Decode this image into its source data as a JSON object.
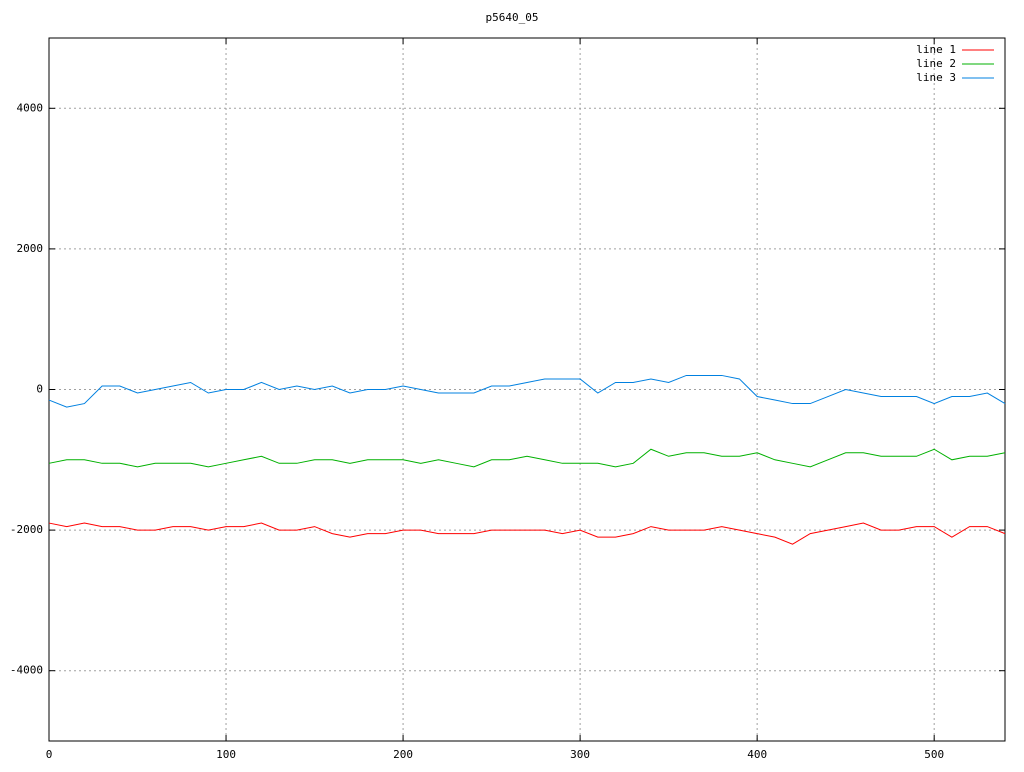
{
  "chart_data": {
    "type": "line",
    "title": "p5640_05",
    "x": [
      0,
      10,
      20,
      30,
      40,
      50,
      60,
      70,
      80,
      90,
      100,
      110,
      120,
      130,
      140,
      150,
      160,
      170,
      180,
      190,
      200,
      210,
      220,
      230,
      240,
      250,
      260,
      270,
      280,
      290,
      300,
      310,
      320,
      330,
      340,
      350,
      360,
      370,
      380,
      390,
      400,
      410,
      420,
      430,
      440,
      450,
      460,
      470,
      480,
      490,
      500,
      510,
      520,
      530,
      540
    ],
    "series": [
      {
        "name": "line 1",
        "color": "#ff0000",
        "values": [
          -1900,
          -1950,
          -1900,
          -1950,
          -1950,
          -2000,
          -2000,
          -1950,
          -1950,
          -2000,
          -1950,
          -1950,
          -1900,
          -2000,
          -2000,
          -1950,
          -2050,
          -2100,
          -2050,
          -2050,
          -2000,
          -2000,
          -2050,
          -2050,
          -2050,
          -2000,
          -2000,
          -2000,
          -2000,
          -2050,
          -2000,
          -2100,
          -2100,
          -2050,
          -1950,
          -2000,
          -2000,
          -2000,
          -1950,
          -2000,
          -2050,
          -2100,
          -2200,
          -2050,
          -2000,
          -1950,
          -1900,
          -2000,
          -2000,
          -1950,
          -1950,
          -2100,
          -1950,
          -1950,
          -2050
        ]
      },
      {
        "name": "line 2",
        "color": "#00b000",
        "values": [
          -1050,
          -1000,
          -1000,
          -1050,
          -1050,
          -1100,
          -1050,
          -1050,
          -1050,
          -1100,
          -1050,
          -1000,
          -950,
          -1050,
          -1050,
          -1000,
          -1000,
          -1050,
          -1000,
          -1000,
          -1000,
          -1050,
          -1000,
          -1050,
          -1100,
          -1000,
          -1000,
          -950,
          -1000,
          -1050,
          -1050,
          -1050,
          -1100,
          -1050,
          -850,
          -950,
          -900,
          -900,
          -950,
          -950,
          -900,
          -1000,
          -1050,
          -1100,
          -1000,
          -900,
          -900,
          -950,
          -950,
          -950,
          -850,
          -1000,
          -950,
          -950,
          -900
        ]
      },
      {
        "name": "line 3",
        "color": "#0080e0",
        "values": [
          -150,
          -250,
          -200,
          50,
          50,
          -50,
          0,
          50,
          100,
          -50,
          0,
          0,
          100,
          0,
          50,
          0,
          50,
          -50,
          0,
          0,
          50,
          0,
          -50,
          -50,
          -50,
          50,
          50,
          100,
          150,
          150,
          150,
          -50,
          100,
          100,
          150,
          100,
          200,
          200,
          200,
          150,
          -100,
          -150,
          -200,
          -200,
          -100,
          0,
          -50,
          -100,
          -100,
          -100,
          -200,
          -100,
          -100,
          -50,
          -200
        ]
      }
    ],
    "xlim": [
      0,
      540
    ],
    "xticks": [
      0,
      100,
      200,
      300,
      400,
      500
    ],
    "ylim": [
      -5000,
      5000
    ],
    "yticks": [
      -4000,
      -2000,
      0,
      2000,
      4000
    ],
    "grid": true,
    "legend": "top-right"
  }
}
